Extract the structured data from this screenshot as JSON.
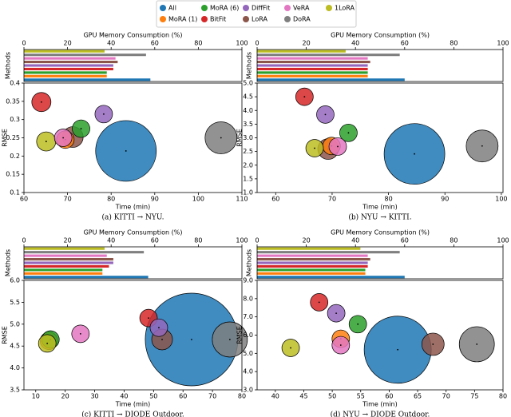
{
  "chart_data": [
    {
      "type": "bubble",
      "title": "(a) KITTI → NYU.",
      "x_label": "Time (min)",
      "y_label": "RMSE",
      "bar_x_label": "GPU Memory Consumption (%)",
      "bar_y_label": "Methods",
      "bar_xlim": [
        0,
        100
      ],
      "bar_xticks": [
        0,
        20,
        40,
        60,
        80,
        100
      ],
      "xlim": [
        60,
        110
      ],
      "xticks": [
        60,
        70,
        80,
        90,
        100,
        110
      ],
      "ylim": [
        0.1,
        0.4
      ],
      "yticks": [
        0.1,
        0.15,
        0.2,
        0.25,
        0.3,
        0.35,
        0.4
      ],
      "series": [
        {
          "name": "All",
          "color": "#1f77b4",
          "x": 83.4,
          "y": 0.214,
          "size": 1444,
          "memory": 58
        },
        {
          "name": "MoRA (1)",
          "color": "#ff7f0e",
          "x": 69.5,
          "y": 0.245,
          "size": 121,
          "memory": 38
        },
        {
          "name": "MoRA (6)",
          "color": "#2ca02c",
          "x": 73.1,
          "y": 0.275,
          "size": 121,
          "memory": 38
        },
        {
          "name": "BitFit",
          "color": "#d62728",
          "x": 64,
          "y": 0.348,
          "size": 144,
          "memory": 41
        },
        {
          "name": "DiffFit",
          "color": "#9467bd",
          "x": 78.3,
          "y": 0.315,
          "size": 121,
          "memory": 41
        },
        {
          "name": "LoRA",
          "color": "#8c564b",
          "x": 71.2,
          "y": 0.252,
          "size": 169,
          "memory": 43
        },
        {
          "name": "VeRA",
          "color": "#e377c2",
          "x": 69,
          "y": 0.25,
          "size": 121,
          "memory": 42
        },
        {
          "name": "DoRA",
          "color": "#7f7f7f",
          "x": 105.2,
          "y": 0.25,
          "size": 400,
          "memory": 56
        },
        {
          "name": "1LoRA",
          "color": "#bcbd22",
          "x": 65.1,
          "y": 0.24,
          "size": 144,
          "memory": 37
        }
      ]
    },
    {
      "type": "bubble",
      "title": "(b) NYU → KITTI.",
      "x_label": "Time (min)",
      "y_label": "RMSE",
      "bar_x_label": "GPU Memory Consumption (%)",
      "bar_y_label": "Methods",
      "bar_xlim": [
        0,
        100
      ],
      "bar_xticks": [
        0,
        20,
        40,
        60,
        80,
        100
      ],
      "xlim": [
        56.7,
        100.3
      ],
      "xticks": [
        60,
        70,
        80,
        90,
        100
      ],
      "ylim": [
        1,
        5
      ],
      "yticks": [
        {
          "value": 1,
          "label": "1.0"
        },
        1.5,
        {
          "value": 2,
          "label": "2.0"
        },
        2.5,
        {
          "value": 3,
          "label": "3.0"
        },
        3.5,
        {
          "value": 4,
          "label": "4.0"
        },
        4.5,
        {
          "value": 5,
          "label": "5.0"
        }
      ],
      "series": [
        {
          "name": "All",
          "color": "#1f77b4",
          "x": 84.6,
          "y": 2.41,
          "size": 1444,
          "memory": 60
        },
        {
          "name": "MoRA (1)",
          "color": "#ff7f0e",
          "x": 69.9,
          "y": 2.7,
          "size": 121,
          "memory": 45
        },
        {
          "name": "MoRA (6)",
          "color": "#2ca02c",
          "x": 72.9,
          "y": 3.18,
          "size": 121,
          "memory": 45
        },
        {
          "name": "BitFit",
          "color": "#d62728",
          "x": 65.1,
          "y": 4.5,
          "size": 121,
          "memory": 45
        },
        {
          "name": "DiffFit",
          "color": "#9467bd",
          "x": 68.8,
          "y": 3.85,
          "size": 121,
          "memory": 45
        },
        {
          "name": "LoRA",
          "color": "#8c564b",
          "x": 69.3,
          "y": 2.59,
          "size": 169,
          "memory": 46
        },
        {
          "name": "VeRA",
          "color": "#e377c2",
          "x": 71,
          "y": 2.68,
          "size": 121,
          "memory": 45
        },
        {
          "name": "DoRA",
          "color": "#7f7f7f",
          "x": 96.6,
          "y": 2.7,
          "size": 400,
          "memory": 58
        },
        {
          "name": "1LoRA",
          "color": "#bcbd22",
          "x": 66.9,
          "y": 2.62,
          "size": 121,
          "memory": 36
        }
      ]
    },
    {
      "type": "bubble",
      "title": "(c) KITTI → DIODE Outdoor.",
      "x_label": "Time (min)",
      "y_label": "RMSE",
      "bar_x_label": "GPU Memory Consumption (%)",
      "bar_y_label": "Methods",
      "bar_xlim": [
        0,
        100
      ],
      "bar_xticks": [
        0,
        20,
        40,
        60,
        80,
        100
      ],
      "xlim": [
        6,
        80
      ],
      "xticks": [
        10,
        20,
        30,
        40,
        50,
        60,
        70,
        80
      ],
      "ylim": [
        3.5,
        6
      ],
      "yticks": [
        3.5,
        {
          "value": 4,
          "label": "4.0"
        },
        4.5,
        {
          "value": 5,
          "label": "5.0"
        },
        5.5,
        {
          "value": 6,
          "label": "6.0"
        }
      ],
      "series": [
        {
          "name": "All",
          "color": "#1f77b4",
          "x": 62.9,
          "y": 4.65,
          "size": 3364,
          "memory": 57
        },
        {
          "name": "MoRA (1)",
          "color": "#ff7f0e",
          "x": 14.5,
          "y": 4.62,
          "size": 121,
          "memory": 36
        },
        {
          "name": "MoRA (6)",
          "color": "#2ca02c",
          "x": 15,
          "y": 4.65,
          "size": 121,
          "memory": 36
        },
        {
          "name": "BitFit",
          "color": "#d62728",
          "x": 48.3,
          "y": 5.14,
          "size": 121,
          "memory": 39
        },
        {
          "name": "DiffFit",
          "color": "#9467bd",
          "x": 51.8,
          "y": 4.92,
          "size": 121,
          "memory": 41
        },
        {
          "name": "LoRA",
          "color": "#8c564b",
          "x": 52.9,
          "y": 4.65,
          "size": 169,
          "memory": 41
        },
        {
          "name": "VeRA",
          "color": "#e377c2",
          "x": 25.2,
          "y": 4.78,
          "size": 121,
          "memory": 38
        },
        {
          "name": "DoRA",
          "color": "#7f7f7f",
          "x": 75.9,
          "y": 4.65,
          "size": 484,
          "memory": 55
        },
        {
          "name": "1LoRA",
          "color": "#bcbd22",
          "x": 13.9,
          "y": 4.56,
          "size": 121,
          "memory": 37
        }
      ]
    },
    {
      "type": "bubble",
      "title": "(d) NYU → DIODE Outdoor.",
      "x_label": "Time (min)",
      "y_label": "RMSE",
      "bar_x_label": "GPU Memory Consumption (%)",
      "bar_y_label": "Methods",
      "bar_xlim": [
        0,
        100
      ],
      "bar_xticks": [
        0,
        20,
        40,
        60,
        80,
        100
      ],
      "xlim": [
        36.8,
        80
      ],
      "xticks": [
        40,
        45,
        50,
        55,
        60,
        65,
        70,
        75,
        80
      ],
      "ylim": [
        3,
        9
      ],
      "yticks": [
        {
          "value": 3,
          "label": "3.0"
        },
        {
          "value": 4,
          "label": "4.0"
        },
        {
          "value": 5,
          "label": "5.0"
        },
        {
          "value": 6,
          "label": "6.0"
        },
        {
          "value": 7,
          "label": "7.0"
        },
        {
          "value": 8,
          "label": "8.0"
        },
        {
          "value": 9,
          "label": "9.0"
        }
      ],
      "series": [
        {
          "name": "All",
          "color": "#1f77b4",
          "x": 61.5,
          "y": 5.2,
          "size": 1764,
          "memory": 60
        },
        {
          "name": "MoRA (1)",
          "color": "#ff7f0e",
          "x": 51.5,
          "y": 5.8,
          "size": 121,
          "memory": 44
        },
        {
          "name": "MoRA (6)",
          "color": "#2ca02c",
          "x": 54.5,
          "y": 6.6,
          "size": 121,
          "memory": 44
        },
        {
          "name": "BitFit",
          "color": "#d62728",
          "x": 47.7,
          "y": 7.8,
          "size": 121,
          "memory": 45
        },
        {
          "name": "DiffFit",
          "color": "#9467bd",
          "x": 50.7,
          "y": 7.2,
          "size": 121,
          "memory": 45
        },
        {
          "name": "LoRA",
          "color": "#8c564b",
          "x": 67.7,
          "y": 5.5,
          "size": 196,
          "memory": 46
        },
        {
          "name": "VeRA",
          "color": "#e377c2",
          "x": 51.5,
          "y": 5.45,
          "size": 121,
          "memory": 45
        },
        {
          "name": "DoRA",
          "color": "#7f7f7f",
          "x": 75.4,
          "y": 5.5,
          "size": 484,
          "memory": 58
        },
        {
          "name": "1LoRA",
          "color": "#bcbd22",
          "x": 42.7,
          "y": 5.3,
          "size": 121,
          "memory": 42
        }
      ]
    }
  ]
}
